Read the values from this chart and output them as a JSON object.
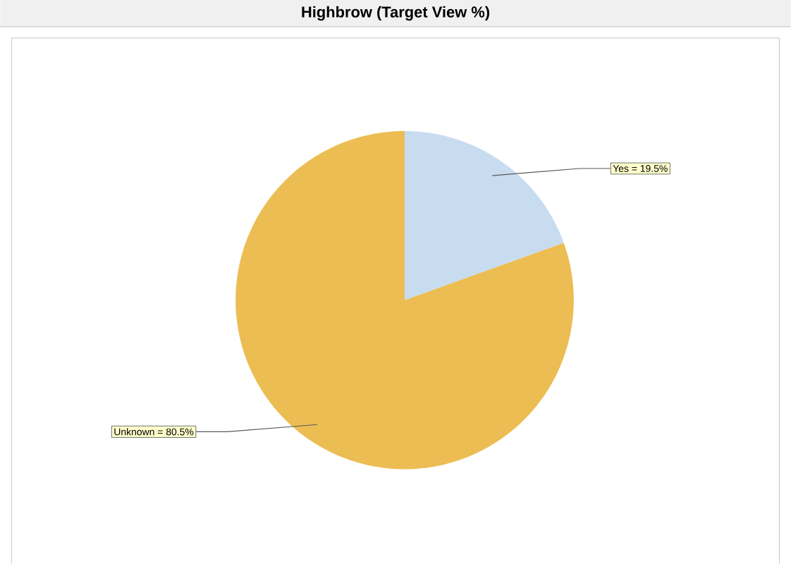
{
  "chart_data": {
    "type": "pie",
    "title": "Highbrow (Target View %)",
    "categories": [
      "Yes = 19.5%",
      "Unknown = 80.5%"
    ],
    "values": [
      19.5,
      80.5
    ],
    "colors": [
      "#c8dcf0",
      "#ecbd52"
    ]
  }
}
